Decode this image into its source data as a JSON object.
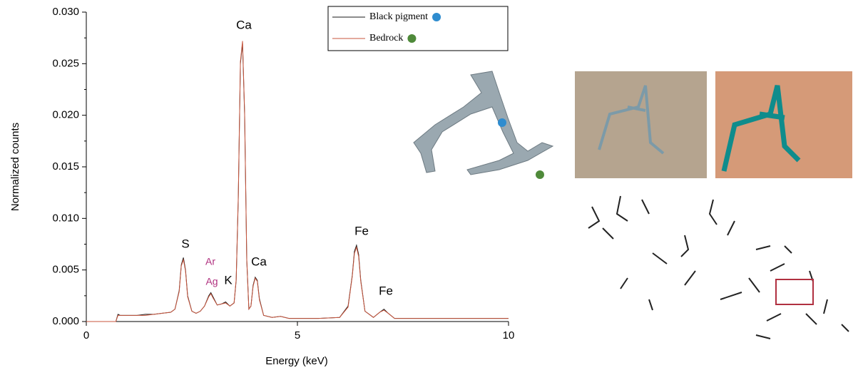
{
  "chart_data": {
    "type": "line",
    "xlabel": "Energy (keV)",
    "ylabel": "Normalized counts",
    "xlim": [
      0,
      10
    ],
    "ylim": [
      0,
      0.03
    ],
    "xticks": [
      0,
      5,
      10
    ],
    "yticks": [
      {
        "value": 0,
        "label": "0.000"
      },
      0.005,
      {
        "value": 0.01,
        "label": "0.010"
      },
      0.015,
      {
        "value": 0.02,
        "label": "0.020"
      },
      0.025,
      {
        "value": 0.03,
        "label": "0.030"
      }
    ],
    "x": [
      0,
      0.7,
      0.75,
      0.8,
      1.0,
      1.2,
      1.4,
      1.6,
      1.8,
      2.0,
      2.1,
      2.2,
      2.25,
      2.3,
      2.35,
      2.4,
      2.5,
      2.6,
      2.7,
      2.8,
      2.9,
      2.95,
      3.0,
      3.1,
      3.2,
      3.3,
      3.4,
      3.5,
      3.55,
      3.6,
      3.65,
      3.7,
      3.75,
      3.8,
      3.85,
      3.9,
      3.95,
      4.0,
      4.05,
      4.1,
      4.2,
      4.4,
      4.6,
      4.8,
      5.0,
      5.5,
      6.0,
      6.2,
      6.3,
      6.35,
      6.4,
      6.45,
      6.5,
      6.6,
      6.8,
      6.95,
      7.05,
      7.15,
      7.3,
      7.6,
      8,
      8.5,
      9,
      9.5,
      10
    ],
    "series": [
      {
        "name": "Black pigment",
        "color": "#1a1a1a",
        "marker_color": "#2e8ccf",
        "values": [
          0,
          0,
          0.0007,
          0.0006,
          0.0006,
          0.0006,
          0.0007,
          0.0007,
          0.0008,
          0.0009,
          0.0012,
          0.003,
          0.0055,
          0.0062,
          0.005,
          0.0025,
          0.001,
          0.0008,
          0.001,
          0.0015,
          0.0025,
          0.0028,
          0.0024,
          0.0016,
          0.0017,
          0.0019,
          0.0015,
          0.0018,
          0.004,
          0.012,
          0.025,
          0.027,
          0.02,
          0.006,
          0.0012,
          0.0015,
          0.0035,
          0.0043,
          0.004,
          0.0022,
          0.0006,
          0.0004,
          0.0005,
          0.0003,
          0.0003,
          0.0003,
          0.0004,
          0.0015,
          0.0045,
          0.0068,
          0.0074,
          0.0065,
          0.004,
          0.001,
          0.0004,
          0.0009,
          0.0012,
          0.0008,
          0.0003,
          0.0003,
          0.0003,
          0.0003,
          0.0003,
          0.0003,
          0.0003
        ]
      },
      {
        "name": "Bedrock",
        "color": "#c8553d",
        "marker_color": "#4f8a3a",
        "values": [
          0,
          0,
          0.0006,
          0.0006,
          0.0006,
          0.0006,
          0.0006,
          0.0007,
          0.0008,
          0.0009,
          0.0012,
          0.0029,
          0.0054,
          0.006,
          0.0049,
          0.0024,
          0.001,
          0.0008,
          0.001,
          0.0015,
          0.0024,
          0.0027,
          0.0023,
          0.0016,
          0.0017,
          0.0018,
          0.0015,
          0.0018,
          0.0041,
          0.0122,
          0.0252,
          0.0272,
          0.0202,
          0.0061,
          0.0012,
          0.0015,
          0.0034,
          0.0042,
          0.0039,
          0.0021,
          0.0006,
          0.0004,
          0.0005,
          0.0003,
          0.0003,
          0.0003,
          0.0004,
          0.0014,
          0.0044,
          0.0066,
          0.0072,
          0.0063,
          0.0039,
          0.001,
          0.0004,
          0.0009,
          0.0011,
          0.0008,
          0.0003,
          0.0003,
          0.0003,
          0.0003,
          0.0003,
          0.0003,
          0.0003
        ]
      }
    ],
    "annotations": [
      "Ca",
      "S",
      "Ar",
      "Ag",
      "K",
      "Ca",
      "Fe",
      "Fe"
    ],
    "grid": false
  }
}
